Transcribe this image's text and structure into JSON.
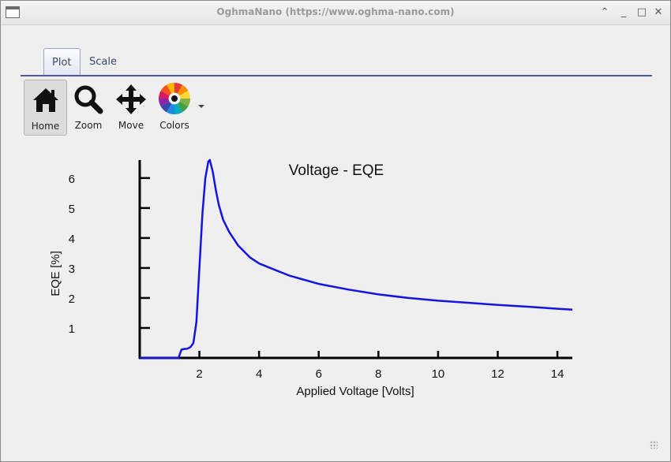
{
  "window": {
    "title": "OghmaNano (https://www.oghma-nano.com)",
    "controls": {
      "collapse": "⌃",
      "minimize": "_",
      "maximize": "□",
      "close": "✕"
    }
  },
  "tabs": [
    {
      "label": "Plot",
      "active": true
    },
    {
      "label": "Scale",
      "active": false
    }
  ],
  "toolbar": {
    "home": {
      "label": "Home",
      "icon": "home-icon",
      "active": true
    },
    "zoom": {
      "label": "Zoom",
      "icon": "magnifier-icon"
    },
    "move": {
      "label": "Move",
      "icon": "move-arrows-icon"
    },
    "colors": {
      "label": "Colors",
      "icon": "color-wheel-icon"
    }
  },
  "chart_data": {
    "type": "line",
    "title": "Voltage - EQE",
    "xlabel": "Applied Voltage [Volts]",
    "ylabel": "EQE [%]",
    "xlim": [
      0,
      14.5
    ],
    "ylim": [
      0,
      6.6
    ],
    "xticks": [
      2,
      4,
      6,
      8,
      10,
      12,
      14
    ],
    "yticks": [
      1,
      2,
      3,
      4,
      5,
      6
    ],
    "grid": false,
    "series": [
      {
        "color": "#1414e0",
        "x": [
          0,
          1.3,
          1.4,
          1.5,
          1.6,
          1.7,
          1.8,
          1.9,
          2.0,
          2.1,
          2.2,
          2.3,
          2.35,
          2.45,
          2.55,
          2.65,
          2.8,
          3.0,
          3.3,
          3.7,
          4.0,
          4.5,
          5.0,
          6.0,
          7.0,
          8.0,
          9.0,
          10.0,
          11.0,
          12.0,
          13.0,
          14.0,
          14.5
        ],
        "y": [
          0,
          0,
          0.28,
          0.3,
          0.31,
          0.36,
          0.5,
          1.2,
          3.0,
          4.8,
          6.0,
          6.55,
          6.6,
          6.2,
          5.6,
          5.1,
          4.6,
          4.2,
          3.75,
          3.35,
          3.15,
          2.95,
          2.75,
          2.47,
          2.28,
          2.12,
          2.0,
          1.91,
          1.84,
          1.77,
          1.71,
          1.64,
          1.61
        ]
      }
    ]
  }
}
